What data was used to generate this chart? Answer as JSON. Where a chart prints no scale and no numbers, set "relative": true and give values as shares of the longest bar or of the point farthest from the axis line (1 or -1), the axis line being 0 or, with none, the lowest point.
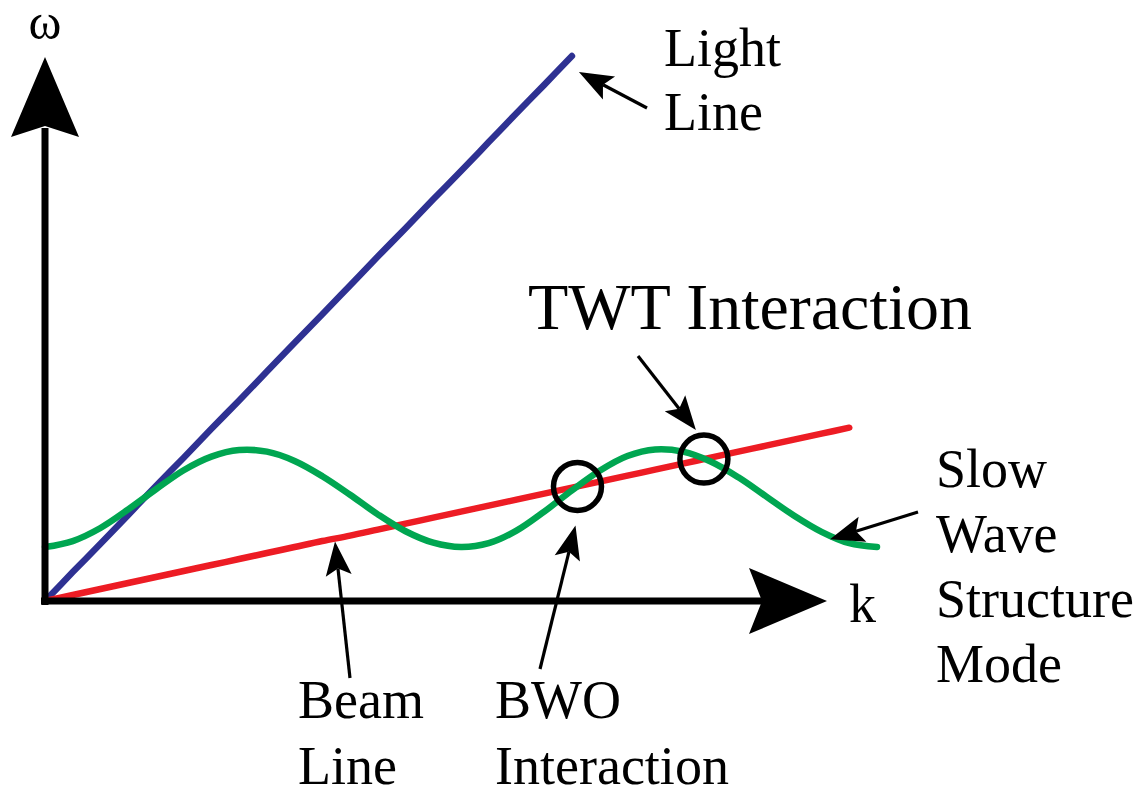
{
  "chart_data": {
    "type": "line",
    "relative": true,
    "xlabel": "k",
    "ylabel": "ω",
    "categories": [
      null,
      null,
      null,
      null,
      null,
      null,
      null,
      null,
      null,
      null,
      null,
      null,
      null,
      null,
      null,
      null,
      null,
      null,
      null,
      null,
      null,
      null,
      null,
      null,
      null,
      null,
      null,
      null,
      null,
      null,
      null
    ],
    "series": [
      {
        "name": "Light Line",
        "color": "#2e3192",
        "values": [
          0,
          0.053,
          0.105,
          0.158,
          0.211,
          0.263,
          0.316,
          0.368,
          0.421,
          0.474,
          0.526,
          0.579,
          0.632,
          0.684,
          0.737,
          0.789,
          0.842,
          0.895,
          0.947,
          1,
          null,
          null,
          null,
          null,
          null,
          null,
          null,
          null,
          null,
          null,
          null
        ]
      },
      {
        "name": "Beam Line",
        "color": "#ed1c24",
        "values": [
          0,
          0.011,
          0.022,
          0.033,
          0.044,
          0.055,
          0.066,
          0.077,
          0.088,
          0.099,
          0.11,
          0.12,
          0.131,
          0.142,
          0.153,
          0.164,
          0.175,
          0.186,
          0.197,
          0.208,
          0.219,
          0.23,
          0.241,
          0.252,
          0.263,
          0.274,
          0.285,
          0.296,
          0.307,
          0.318,
          null
        ]
      },
      {
        "name": "Slow Wave Structure Mode",
        "color": "#00a651",
        "values": [
          0.099,
          0.11,
          0.134,
          0.168,
          0.205,
          0.24,
          0.265,
          0.277,
          0.274,
          0.257,
          0.229,
          0.195,
          0.159,
          0.128,
          0.107,
          0.099,
          0.106,
          0.129,
          0.164,
          0.203,
          0.239,
          0.266,
          0.278,
          0.274,
          0.256,
          0.227,
          0.192,
          0.157,
          0.127,
          0.106,
          0.099
        ]
      }
    ],
    "annotations": [
      "TWT Interaction",
      "BWO Interaction"
    ]
  }
}
